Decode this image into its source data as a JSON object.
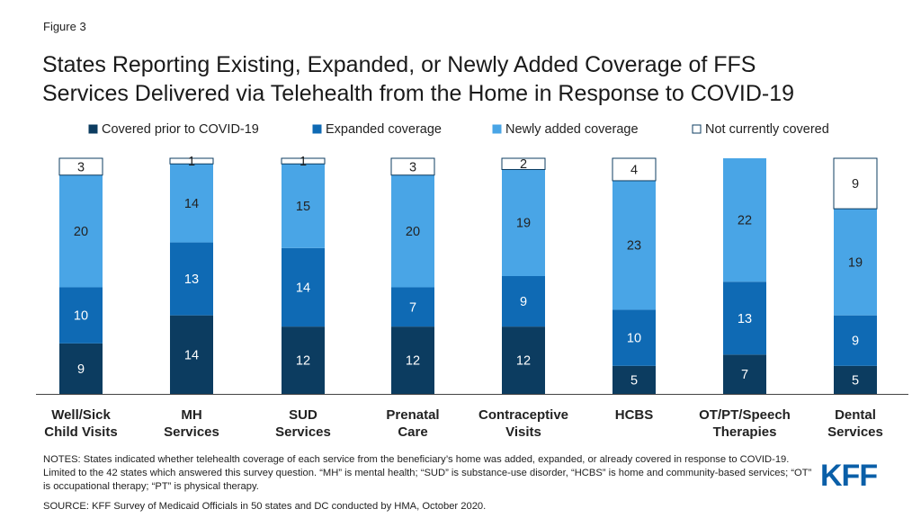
{
  "figure_label": "Figure 3",
  "title_lines": [
    "States Reporting Existing, Expanded, or Newly Added Coverage of FFS",
    "Services Delivered via Telehealth from the Home in Response to COVID-19"
  ],
  "notes": "NOTES: States indicated whether telehealth coverage of each service from the beneficiary’s home was added, expanded, or already covered in response to COVID-19. Limited to the 42 states which answered this survey question. “MH” is mental health; “SUD” is substance-use disorder, “HCBS” is home and community-based services; “OT” is occupational therapy; “PT” is physical therapy.",
  "source": "SOURCE: KFF Survey of Medicaid Officials in 50 states and DC conducted by HMA, October 2020.",
  "logo": "KFF",
  "colors": {
    "prior": "#0c3c60",
    "expanded": "#0f6ab4",
    "new": "#49a5e6",
    "not_covered": "#ffffff",
    "logo": "#0a5fa8"
  },
  "chart_data": {
    "type": "bar",
    "stacked": true,
    "legend_position": "top",
    "grid": false,
    "ylim": [
      0,
      42
    ],
    "categories": [
      [
        "Well/Sick",
        "Child Visits"
      ],
      [
        "MH",
        "Services"
      ],
      [
        "SUD",
        "Services"
      ],
      [
        "Prenatal",
        "Care"
      ],
      [
        "Contraceptive",
        "Visits"
      ],
      [
        "HCBS"
      ],
      [
        "OT/PT/Speech",
        "Therapies"
      ],
      [
        "Dental",
        "Services"
      ]
    ],
    "series": [
      {
        "name": "Covered prior to COVID-19",
        "values": [
          9,
          14,
          12,
          12,
          12,
          5,
          7,
          5
        ]
      },
      {
        "name": "Expanded coverage",
        "values": [
          10,
          13,
          14,
          7,
          9,
          10,
          13,
          9
        ]
      },
      {
        "name": "Newly added coverage",
        "values": [
          20,
          14,
          15,
          20,
          19,
          23,
          22,
          19
        ]
      },
      {
        "name": "Not currently covered",
        "values": [
          3,
          1,
          1,
          3,
          2,
          4,
          0,
          9
        ]
      }
    ]
  }
}
